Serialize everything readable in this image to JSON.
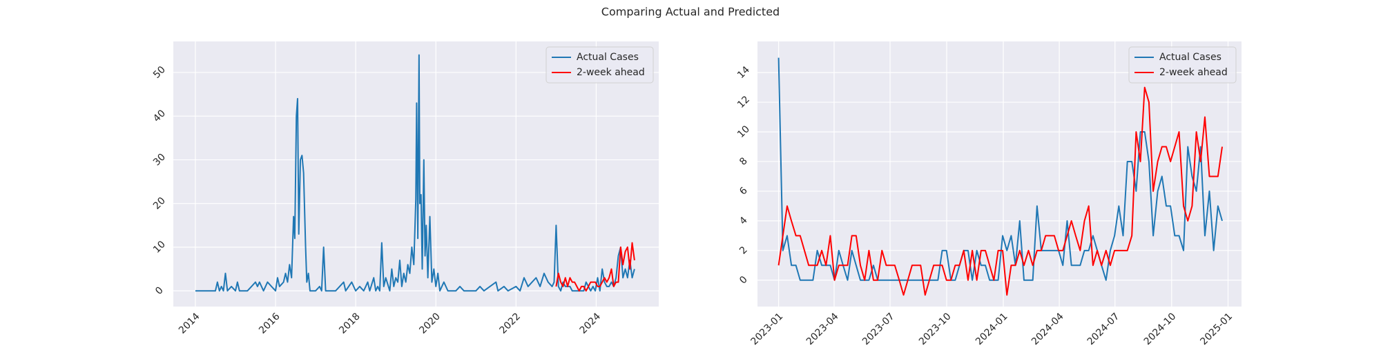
{
  "title": "Comparing Actual and Predicted",
  "chart_data": [
    {
      "type": "line",
      "xlim": [
        2013.45,
        2025.56
      ],
      "ylim": [
        -3.6,
        57.1
      ],
      "xticks": [
        2014,
        2016,
        2018,
        2020,
        2022,
        2024
      ],
      "yticks": [
        0,
        10,
        20,
        30,
        40,
        50
      ],
      "grid": true,
      "legend": "upper right",
      "series": [
        {
          "name": "Actual Cases",
          "color": "#1f77b4",
          "x": [
            2014.0,
            2014.5,
            2014.55,
            2014.6,
            2014.65,
            2014.7,
            2014.75,
            2014.8,
            2014.9,
            2015.0,
            2015.05,
            2015.1,
            2015.3,
            2015.4,
            2015.5,
            2015.55,
            2015.6,
            2015.7,
            2015.8,
            2015.9,
            2016.0,
            2016.05,
            2016.1,
            2016.2,
            2016.25,
            2016.3,
            2016.35,
            2016.4,
            2016.45,
            2016.48,
            2016.52,
            2016.55,
            2016.58,
            2016.62,
            2016.66,
            2016.7,
            2016.75,
            2016.78,
            2016.82,
            2016.86,
            2017.0,
            2017.1,
            2017.15,
            2017.2,
            2017.25,
            2017.5,
            2017.7,
            2017.75,
            2017.9,
            2018.0,
            2018.1,
            2018.2,
            2018.3,
            2018.35,
            2018.45,
            2018.5,
            2018.55,
            2018.6,
            2018.65,
            2018.7,
            2018.75,
            2018.85,
            2018.9,
            2018.95,
            2019.0,
            2019.05,
            2019.1,
            2019.15,
            2019.2,
            2019.25,
            2019.3,
            2019.35,
            2019.4,
            2019.45,
            2019.5,
            2019.52,
            2019.55,
            2019.58,
            2019.6,
            2019.63,
            2019.66,
            2019.7,
            2019.73,
            2019.76,
            2019.8,
            2019.85,
            2019.9,
            2019.95,
            2020.0,
            2020.05,
            2020.1,
            2020.2,
            2020.3,
            2020.5,
            2020.6,
            2020.7,
            2021.0,
            2021.1,
            2021.2,
            2021.5,
            2021.55,
            2021.7,
            2021.8,
            2022.0,
            2022.1,
            2022.2,
            2022.3,
            2022.4,
            2022.5,
            2022.6,
            2022.7,
            2022.8,
            2022.9,
            2022.95,
            2023.0,
            2023.057,
            2023.115,
            2023.172,
            2023.23,
            2023.287,
            2023.345,
            2023.402,
            2023.46,
            2023.517,
            2023.575,
            2023.632,
            2023.69,
            2023.747,
            2023.805,
            2023.862,
            2023.92,
            2023.977,
            2024.035,
            2024.092,
            2024.15,
            2024.207,
            2024.265,
            2024.322,
            2024.38,
            2024.437,
            2024.495,
            2024.552,
            2024.61,
            2024.667,
            2024.725,
            2024.782,
            2024.84,
            2024.897,
            2024.955
          ],
          "values": [
            0,
            0,
            2,
            0,
            1,
            0,
            4,
            0,
            1,
            0,
            2,
            0,
            0,
            1,
            2,
            1,
            2,
            0,
            2,
            1,
            0,
            3,
            1,
            2,
            4,
            2,
            6,
            3,
            17,
            12,
            40,
            44,
            13,
            30,
            31,
            27,
            10,
            2,
            4,
            0,
            0,
            1,
            0,
            10,
            0,
            0,
            2,
            0,
            2,
            0,
            1,
            0,
            2,
            0,
            3,
            0,
            1,
            0,
            11,
            1,
            3,
            0,
            5,
            1,
            3,
            2,
            7,
            1,
            4,
            2,
            6,
            4,
            10,
            6,
            21,
            43,
            12,
            54,
            20,
            22,
            5,
            30,
            8,
            15,
            3,
            17,
            2,
            5,
            1,
            4,
            0,
            2,
            0,
            0,
            1,
            0,
            0,
            1,
            0,
            2,
            0,
            1,
            0,
            1,
            0,
            3,
            1,
            2,
            3,
            1,
            4,
            2,
            1,
            2,
            15,
            1,
            0,
            2,
            1,
            1,
            1,
            0,
            0,
            0,
            0,
            0,
            0,
            2,
            1,
            0,
            1,
            0,
            3,
            0,
            5,
            2,
            1,
            1,
            2,
            1,
            3,
            8,
            10,
            3,
            5,
            3,
            7,
            3,
            5
          ]
        },
        {
          "name": "2-week ahead",
          "color": "#ff0000",
          "x": [
            2023.0,
            2023.057,
            2023.115,
            2023.172,
            2023.23,
            2023.287,
            2023.345,
            2023.402,
            2023.46,
            2023.517,
            2023.575,
            2023.632,
            2023.69,
            2023.747,
            2023.805,
            2023.862,
            2023.92,
            2023.977,
            2024.035,
            2024.092,
            2024.15,
            2024.207,
            2024.265,
            2024.322,
            2024.38,
            2024.437,
            2024.495,
            2024.552,
            2024.61,
            2024.667,
            2024.725,
            2024.782,
            2024.84,
            2024.897,
            2024.955
          ],
          "values": [
            1,
            4,
            2,
            1,
            3,
            1,
            3,
            2,
            2,
            1,
            0,
            1,
            1,
            0,
            1,
            2,
            2,
            2,
            1,
            1,
            2,
            3,
            2,
            3,
            5,
            1,
            2,
            2,
            10,
            6,
            9,
            10,
            5,
            11,
            7
          ]
        }
      ]
    },
    {
      "type": "line",
      "xlim": [
        2022.906,
        2025.06
      ],
      "ylim": [
        -1.78,
        16.1
      ],
      "xticks": [
        {
          "value": 2023.0,
          "label": "2023-01"
        },
        {
          "value": 2023.247,
          "label": "2023-04"
        },
        {
          "value": 2023.496,
          "label": "2023-07"
        },
        {
          "value": 2023.748,
          "label": "2023-10"
        },
        {
          "value": 2024.0,
          "label": "2024-01"
        },
        {
          "value": 2024.249,
          "label": "2024-04"
        },
        {
          "value": 2024.497,
          "label": "2024-07"
        },
        {
          "value": 2024.749,
          "label": "2024-10"
        },
        {
          "value": 2025.0,
          "label": "2025-01"
        }
      ],
      "yticks": [
        0,
        2,
        4,
        6,
        8,
        10,
        12,
        14
      ],
      "grid": true,
      "legend": "upper right",
      "x": [
        2023.0,
        2023.019,
        2023.038,
        2023.057,
        2023.077,
        2023.096,
        2023.115,
        2023.134,
        2023.153,
        2023.172,
        2023.192,
        2023.211,
        2023.23,
        2023.249,
        2023.268,
        2023.287,
        2023.307,
        2023.326,
        2023.345,
        2023.364,
        2023.383,
        2023.402,
        2023.422,
        2023.441,
        2023.46,
        2023.479,
        2023.498,
        2023.517,
        2023.537,
        2023.556,
        2023.575,
        2023.594,
        2023.613,
        2023.632,
        2023.652,
        2023.671,
        2023.69,
        2023.709,
        2023.728,
        2023.747,
        2023.767,
        2023.786,
        2023.805,
        2023.824,
        2023.843,
        2023.862,
        2023.882,
        2023.901,
        2023.92,
        2023.939,
        2023.958,
        2023.977,
        2023.997,
        2024.016,
        2024.035,
        2024.054,
        2024.073,
        2024.092,
        2024.112,
        2024.131,
        2024.15,
        2024.169,
        2024.188,
        2024.207,
        2024.227,
        2024.246,
        2024.265,
        2024.284,
        2024.303,
        2024.322,
        2024.342,
        2024.361,
        2024.38,
        2024.399,
        2024.418,
        2024.437,
        2024.457,
        2024.476,
        2024.495,
        2024.514,
        2024.533,
        2024.552,
        2024.572,
        2024.591,
        2024.61,
        2024.629,
        2024.648,
        2024.667,
        2024.687,
        2024.706,
        2024.725,
        2024.744,
        2024.763,
        2024.782,
        2024.802,
        2024.821,
        2024.84,
        2024.859,
        2024.878,
        2024.897,
        2024.917,
        2024.936,
        2024.955,
        2024.974
      ],
      "series": [
        {
          "name": "Actual Cases",
          "color": "#1f77b4",
          "values": [
            15,
            2,
            3,
            1,
            1,
            0,
            0,
            0,
            0,
            2,
            1,
            1,
            1,
            0,
            2,
            1,
            0,
            2,
            1,
            0,
            0,
            0,
            1,
            0,
            0,
            0,
            0,
            0,
            0,
            0,
            0,
            0,
            0,
            0,
            0,
            0,
            0,
            0,
            2,
            2,
            0,
            0,
            1,
            2,
            2,
            0,
            2,
            1,
            1,
            0,
            0,
            0,
            3,
            2,
            3,
            1,
            4,
            0,
            0,
            0,
            5,
            2,
            2,
            2,
            2,
            2,
            1,
            4,
            1,
            1,
            1,
            2,
            2,
            3,
            2,
            1,
            0,
            2,
            3,
            5,
            3,
            8,
            8,
            6,
            10,
            10,
            8,
            3,
            6,
            7,
            5,
            5,
            3,
            3,
            2,
            9,
            7,
            6,
            9,
            3,
            6,
            2,
            5,
            4
          ]
        },
        {
          "name": "2-week ahead",
          "color": "#ff0000",
          "values": [
            1,
            3,
            5,
            4,
            3,
            3,
            2,
            1,
            1,
            1,
            2,
            1,
            3,
            0,
            1,
            1,
            1,
            3,
            3,
            1,
            0,
            2,
            0,
            0,
            2,
            1,
            1,
            1,
            0,
            -1,
            0,
            1,
            1,
            1,
            -1,
            0,
            1,
            1,
            1,
            0,
            0,
            1,
            1,
            2,
            0,
            2,
            0,
            2,
            2,
            1,
            0,
            2,
            2,
            -1,
            1,
            1,
            2,
            1,
            2,
            1,
            2,
            2,
            3,
            3,
            3,
            2,
            2,
            3,
            4,
            3,
            2,
            4,
            5,
            1,
            2,
            1,
            2,
            1,
            2,
            2,
            2,
            2,
            3,
            10,
            8,
            13,
            12,
            6,
            8,
            9,
            9,
            8,
            9,
            10,
            5,
            4,
            5,
            10,
            8,
            11,
            7,
            7,
            7,
            9
          ]
        }
      ]
    }
  ]
}
